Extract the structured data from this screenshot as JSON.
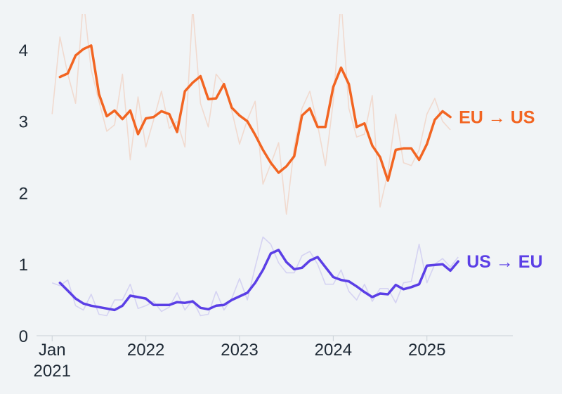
{
  "chart_data": {
    "type": "line",
    "title": "",
    "xlabel": "",
    "ylabel": "",
    "ylim": [
      0,
      4.5
    ],
    "xlim": [
      "2020-11",
      "2025-12"
    ],
    "grid": false,
    "yticks": [
      0,
      1,
      2,
      3,
      4
    ],
    "xticks": [
      {
        "date": "2021-01",
        "label": "Jan",
        "sublabel": "2021"
      },
      {
        "date": "2022-01",
        "label": "2022",
        "sublabel": ""
      },
      {
        "date": "2023-01",
        "label": "2023",
        "sublabel": ""
      },
      {
        "date": "2024-01",
        "label": "2024",
        "sublabel": ""
      },
      {
        "date": "2025-01",
        "label": "2025",
        "sublabel": ""
      }
    ],
    "series": [
      {
        "name": "EU → US",
        "color": "#f26522",
        "trend": [
          [
            "2021-02",
            3.62
          ],
          [
            "2021-03",
            3.67
          ],
          [
            "2021-04",
            3.92
          ],
          [
            "2021-05",
            4.01
          ],
          [
            "2021-06",
            4.06
          ],
          [
            "2021-07",
            3.38
          ],
          [
            "2021-08",
            3.07
          ],
          [
            "2021-09",
            3.15
          ],
          [
            "2021-10",
            3.03
          ],
          [
            "2021-11",
            3.15
          ],
          [
            "2021-12",
            2.82
          ],
          [
            "2022-01",
            3.04
          ],
          [
            "2022-02",
            3.06
          ],
          [
            "2022-03",
            3.14
          ],
          [
            "2022-04",
            3.1
          ],
          [
            "2022-05",
            2.85
          ],
          [
            "2022-06",
            3.42
          ],
          [
            "2022-07",
            3.54
          ],
          [
            "2022-08",
            3.63
          ],
          [
            "2022-09",
            3.31
          ],
          [
            "2022-10",
            3.32
          ],
          [
            "2022-11",
            3.52
          ],
          [
            "2022-12",
            3.19
          ],
          [
            "2023-01",
            3.08
          ],
          [
            "2023-02",
            3.0
          ],
          [
            "2023-03",
            2.81
          ],
          [
            "2023-04",
            2.6
          ],
          [
            "2023-05",
            2.42
          ],
          [
            "2023-06",
            2.28
          ],
          [
            "2023-07",
            2.37
          ],
          [
            "2023-08",
            2.51
          ],
          [
            "2023-09",
            3.08
          ],
          [
            "2023-10",
            3.18
          ],
          [
            "2023-11",
            2.92
          ],
          [
            "2023-12",
            2.92
          ],
          [
            "2024-01",
            3.48
          ],
          [
            "2024-02",
            3.75
          ],
          [
            "2024-03",
            3.52
          ],
          [
            "2024-04",
            2.92
          ],
          [
            "2024-05",
            2.97
          ],
          [
            "2024-06",
            2.66
          ],
          [
            "2024-07",
            2.5
          ],
          [
            "2024-08",
            2.17
          ],
          [
            "2024-09",
            2.6
          ],
          [
            "2024-10",
            2.62
          ],
          [
            "2024-11",
            2.62
          ],
          [
            "2024-12",
            2.46
          ],
          [
            "2025-01",
            2.68
          ],
          [
            "2025-02",
            3.02
          ],
          [
            "2025-03",
            3.14
          ],
          [
            "2025-04",
            3.06
          ]
        ],
        "monthly": [
          [
            "2021-01",
            3.1
          ],
          [
            "2021-02",
            4.18
          ],
          [
            "2021-03",
            3.66
          ],
          [
            "2021-04",
            3.25
          ],
          [
            "2021-05",
            4.7
          ],
          [
            "2021-06",
            3.72
          ],
          [
            "2021-07",
            3.28
          ],
          [
            "2021-08",
            2.86
          ],
          [
            "2021-09",
            2.95
          ],
          [
            "2021-10",
            3.66
          ],
          [
            "2021-11",
            2.46
          ],
          [
            "2021-12",
            3.34
          ],
          [
            "2022-01",
            2.64
          ],
          [
            "2022-02",
            3.02
          ],
          [
            "2022-03",
            3.42
          ],
          [
            "2022-04",
            2.9
          ],
          [
            "2022-05",
            3.0
          ],
          [
            "2022-06",
            2.64
          ],
          [
            "2022-07",
            4.6
          ],
          [
            "2022-08",
            3.25
          ],
          [
            "2022-09",
            2.92
          ],
          [
            "2022-10",
            3.66
          ],
          [
            "2022-11",
            3.52
          ],
          [
            "2022-12",
            3.15
          ],
          [
            "2023-01",
            2.68
          ],
          [
            "2023-02",
            3.02
          ],
          [
            "2023-03",
            3.28
          ],
          [
            "2023-04",
            2.12
          ],
          [
            "2023-05",
            2.4
          ],
          [
            "2023-06",
            2.7
          ],
          [
            "2023-07",
            1.7
          ],
          [
            "2023-08",
            2.64
          ],
          [
            "2023-09",
            3.18
          ],
          [
            "2023-10",
            3.42
          ],
          [
            "2023-11",
            2.95
          ],
          [
            "2023-12",
            2.38
          ],
          [
            "2024-01",
            3.28
          ],
          [
            "2024-02",
            4.7
          ],
          [
            "2024-03",
            3.18
          ],
          [
            "2024-04",
            2.78
          ],
          [
            "2024-05",
            2.82
          ],
          [
            "2024-06",
            3.36
          ],
          [
            "2024-07",
            1.8
          ],
          [
            "2024-08",
            2.28
          ],
          [
            "2024-09",
            3.1
          ],
          [
            "2024-10",
            2.42
          ],
          [
            "2024-11",
            2.38
          ],
          [
            "2024-12",
            2.6
          ],
          [
            "2025-01",
            3.1
          ],
          [
            "2025-02",
            3.32
          ],
          [
            "2025-03",
            3.0
          ],
          [
            "2025-04",
            2.88
          ]
        ]
      },
      {
        "name": "US → EU",
        "color": "#5b3fe6",
        "trend": [
          [
            "2021-02",
            0.74
          ],
          [
            "2021-03",
            0.63
          ],
          [
            "2021-04",
            0.52
          ],
          [
            "2021-05",
            0.45
          ],
          [
            "2021-06",
            0.42
          ],
          [
            "2021-07",
            0.4
          ],
          [
            "2021-08",
            0.38
          ],
          [
            "2021-09",
            0.36
          ],
          [
            "2021-10",
            0.42
          ],
          [
            "2021-11",
            0.56
          ],
          [
            "2021-12",
            0.54
          ],
          [
            "2022-01",
            0.52
          ],
          [
            "2022-02",
            0.43
          ],
          [
            "2022-03",
            0.43
          ],
          [
            "2022-04",
            0.43
          ],
          [
            "2022-05",
            0.47
          ],
          [
            "2022-06",
            0.46
          ],
          [
            "2022-07",
            0.48
          ],
          [
            "2022-08",
            0.39
          ],
          [
            "2022-09",
            0.37
          ],
          [
            "2022-10",
            0.42
          ],
          [
            "2022-11",
            0.43
          ],
          [
            "2022-12",
            0.5
          ],
          [
            "2023-01",
            0.55
          ],
          [
            "2023-02",
            0.6
          ],
          [
            "2023-03",
            0.74
          ],
          [
            "2023-04",
            0.92
          ],
          [
            "2023-05",
            1.15
          ],
          [
            "2023-06",
            1.2
          ],
          [
            "2023-07",
            1.03
          ],
          [
            "2023-08",
            0.93
          ],
          [
            "2023-09",
            0.95
          ],
          [
            "2023-10",
            1.05
          ],
          [
            "2023-11",
            1.1
          ],
          [
            "2023-12",
            0.96
          ],
          [
            "2024-01",
            0.82
          ],
          [
            "2024-02",
            0.78
          ],
          [
            "2024-03",
            0.76
          ],
          [
            "2024-04",
            0.69
          ],
          [
            "2024-05",
            0.61
          ],
          [
            "2024-06",
            0.54
          ],
          [
            "2024-07",
            0.59
          ],
          [
            "2024-08",
            0.58
          ],
          [
            "2024-09",
            0.71
          ],
          [
            "2024-10",
            0.65
          ],
          [
            "2024-11",
            0.68
          ],
          [
            "2024-12",
            0.72
          ],
          [
            "2025-01",
            0.98
          ],
          [
            "2025-02",
            0.99
          ],
          [
            "2025-03",
            1.0
          ],
          [
            "2025-04",
            0.91
          ],
          [
            "2025-05",
            1.04
          ]
        ],
        "monthly": [
          [
            "2021-01",
            0.74
          ],
          [
            "2021-02",
            0.7
          ],
          [
            "2021-03",
            0.78
          ],
          [
            "2021-04",
            0.42
          ],
          [
            "2021-05",
            0.36
          ],
          [
            "2021-06",
            0.58
          ],
          [
            "2021-07",
            0.3
          ],
          [
            "2021-08",
            0.28
          ],
          [
            "2021-09",
            0.5
          ],
          [
            "2021-10",
            0.5
          ],
          [
            "2021-11",
            0.72
          ],
          [
            "2021-12",
            0.38
          ],
          [
            "2022-01",
            0.42
          ],
          [
            "2022-02",
            0.48
          ],
          [
            "2022-03",
            0.34
          ],
          [
            "2022-04",
            0.4
          ],
          [
            "2022-05",
            0.6
          ],
          [
            "2022-06",
            0.36
          ],
          [
            "2022-07",
            0.5
          ],
          [
            "2022-08",
            0.28
          ],
          [
            "2022-09",
            0.3
          ],
          [
            "2022-10",
            0.62
          ],
          [
            "2022-11",
            0.36
          ],
          [
            "2022-12",
            0.52
          ],
          [
            "2023-01",
            0.8
          ],
          [
            "2023-02",
            0.5
          ],
          [
            "2023-03",
            0.96
          ],
          [
            "2023-04",
            1.38
          ],
          [
            "2023-05",
            1.28
          ],
          [
            "2023-06",
            1.02
          ],
          [
            "2023-07",
            0.88
          ],
          [
            "2023-08",
            0.88
          ],
          [
            "2023-09",
            1.12
          ],
          [
            "2023-10",
            1.18
          ],
          [
            "2023-11",
            1.0
          ],
          [
            "2023-12",
            0.72
          ],
          [
            "2024-01",
            0.72
          ],
          [
            "2024-02",
            0.92
          ],
          [
            "2024-03",
            0.62
          ],
          [
            "2024-04",
            0.5
          ],
          [
            "2024-05",
            0.72
          ],
          [
            "2024-06",
            0.48
          ],
          [
            "2024-07",
            0.66
          ],
          [
            "2024-08",
            0.66
          ],
          [
            "2024-09",
            0.46
          ],
          [
            "2024-10",
            0.74
          ],
          [
            "2024-11",
            0.76
          ],
          [
            "2024-12",
            1.28
          ],
          [
            "2025-01",
            0.74
          ],
          [
            "2025-02",
            1.0
          ],
          [
            "2025-03",
            1.08
          ],
          [
            "2025-04",
            0.96
          ],
          [
            "2025-05",
            1.1
          ]
        ]
      }
    ]
  }
}
